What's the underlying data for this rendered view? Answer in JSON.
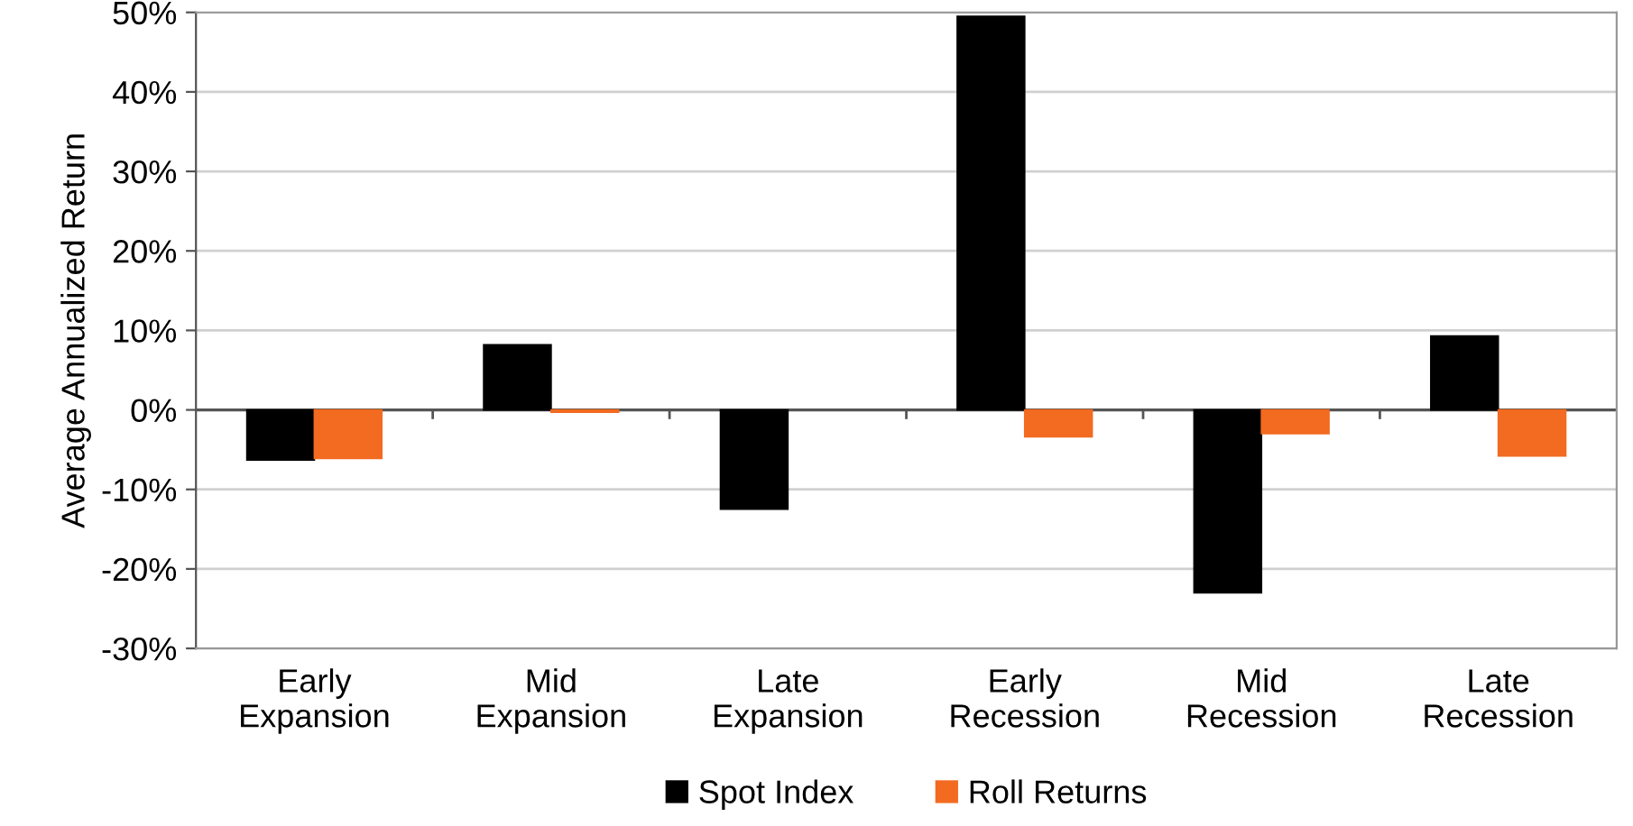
{
  "chart_data": {
    "type": "bar",
    "ylabel": "Average Annualized Return",
    "categories": [
      "Early\nExpansion",
      "Mid\nExpansion",
      "Late\nExpansion",
      "Early\nRecession",
      "Mid\nRecession",
      "Late\nRecession"
    ],
    "series": [
      {
        "name": "Spot Index",
        "color": "#000000",
        "values": [
          -6.3,
          8.2,
          -12.5,
          49.5,
          -23.0,
          9.3
        ]
      },
      {
        "name": "Roll Returns",
        "color": "#f26b21",
        "values": [
          -6.1,
          -0.3,
          null,
          -3.4,
          -3.0,
          -5.8
        ]
      }
    ],
    "ylim": [
      -30,
      50
    ],
    "yticks": [
      {
        "value": -30,
        "label": "-30%"
      },
      {
        "value": -20,
        "label": "-20%"
      },
      {
        "value": -10,
        "label": "-10%"
      },
      {
        "value": 0,
        "label": "0%"
      },
      {
        "value": 10,
        "label": "10%"
      },
      {
        "value": 20,
        "label": "20%"
      },
      {
        "value": 30,
        "label": "30%"
      },
      {
        "value": 40,
        "label": "40%"
      },
      {
        "value": 50,
        "label": "50%"
      }
    ],
    "grid": "y",
    "legend": "bottom"
  }
}
